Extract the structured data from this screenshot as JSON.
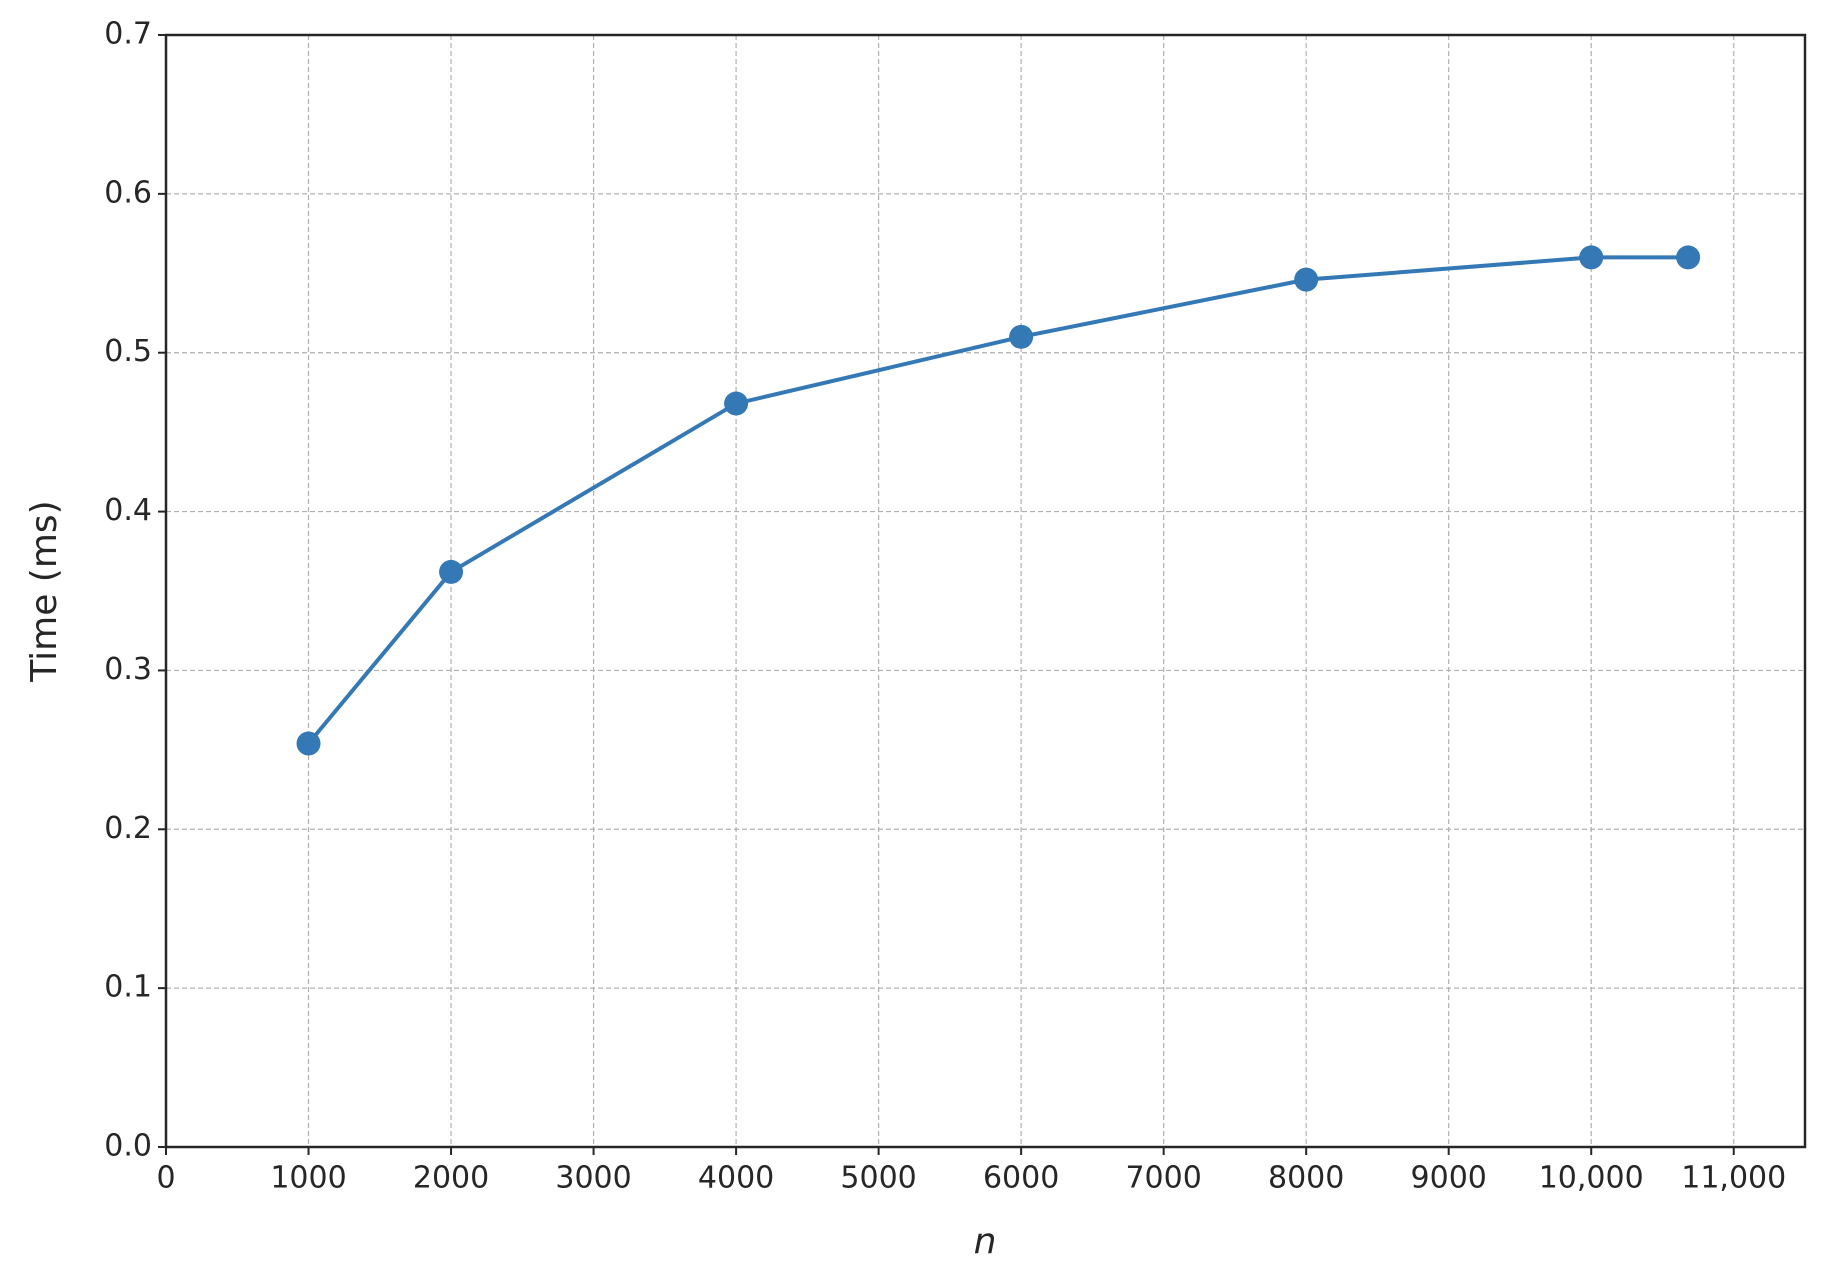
{
  "chart_data": {
    "type": "line",
    "xlabel": "n",
    "ylabel": "Time (ms)",
    "x": [
      1000,
      2000,
      4000,
      6000,
      8000,
      10000,
      10680
    ],
    "values": [
      0.254,
      0.362,
      0.468,
      0.51,
      0.546,
      0.56,
      0.56
    ],
    "color": "#3478b5",
    "xlim": [
      0,
      11500
    ],
    "xticks": [
      0,
      1000,
      2000,
      3000,
      4000,
      5000,
      6000,
      7000,
      8000,
      9000,
      {
        "value": 10000,
        "label": "10,000"
      },
      {
        "value": 11000,
        "label": "11,000"
      }
    ],
    "ylim": [
      0,
      0.7
    ],
    "yticks": [
      {
        "value": 0,
        "label": "0.0"
      },
      0.1,
      0.2,
      0.3,
      0.4,
      0.5,
      0.6,
      0.7
    ],
    "grid": true
  }
}
